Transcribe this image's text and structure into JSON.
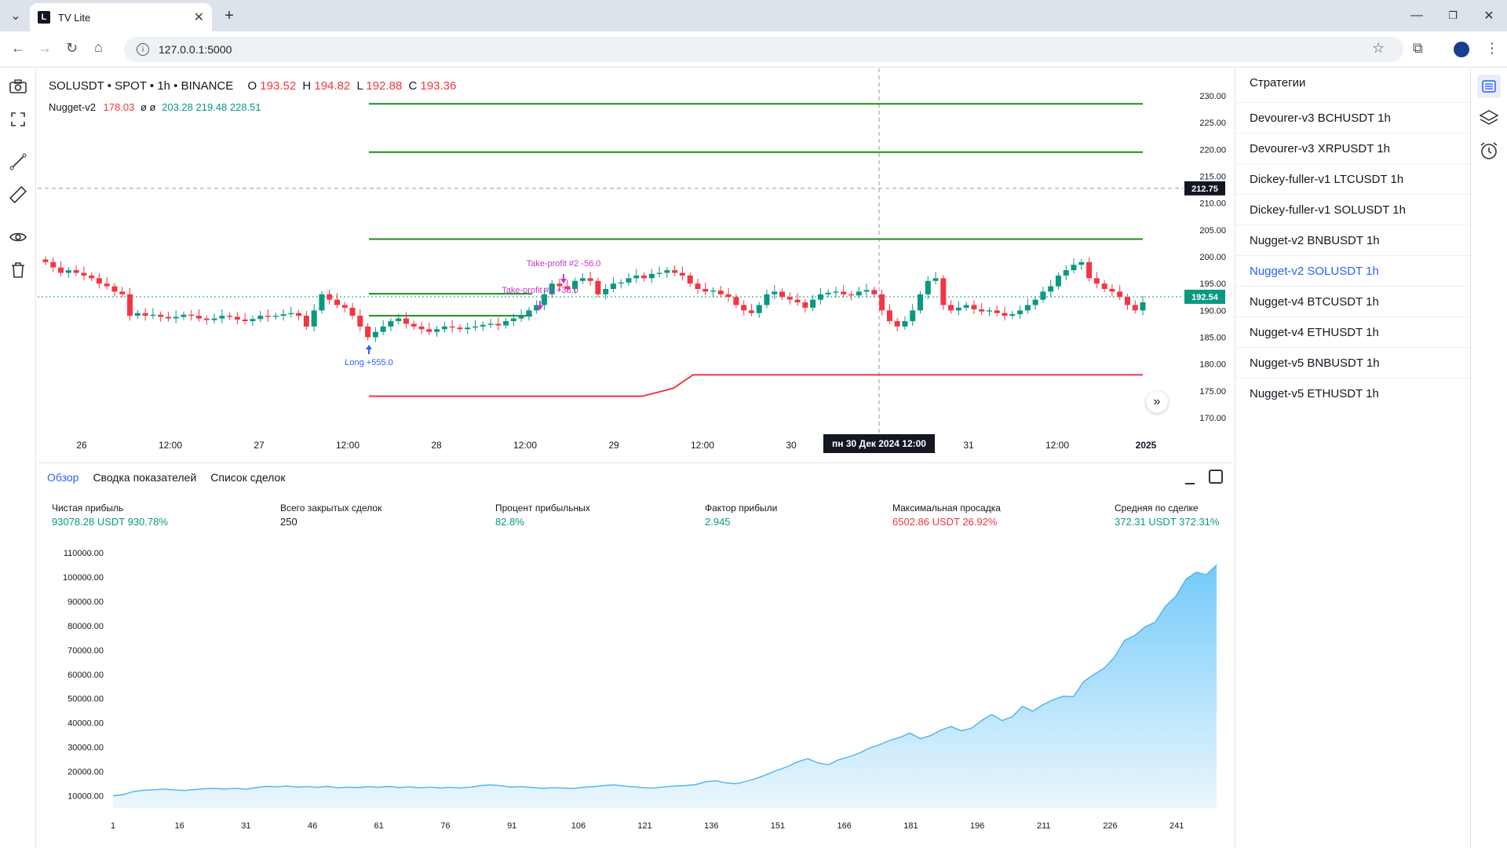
{
  "browser": {
    "tab_title": "TV Lite",
    "favicon_letter": "L",
    "url": "127.0.0.1:5000"
  },
  "legend": {
    "symbol": "SOLUSDT • SPOT • 1h • BINANCE",
    "o_label": "O",
    "o": "193.52",
    "h_label": "H",
    "h": "194.82",
    "l_label": "L",
    "l": "192.88",
    "c_label": "C",
    "c": "193.36",
    "indicator": "Nugget-v2",
    "ind_v1": "178.03",
    "ind_sym": "ø ø",
    "ind_v2": "203.28 219.48 228.51"
  },
  "chart_data": [
    {
      "type": "candlestick",
      "price_axis": [
        "230.00",
        "225.00",
        "220.00",
        "215.00",
        "210.00",
        "205.00",
        "200.00",
        "195.00",
        "190.00",
        "185.00",
        "180.00",
        "175.00",
        "170.00"
      ],
      "ylim": [
        170,
        230
      ],
      "time_axis": [
        "26",
        "12:00",
        "27",
        "12:00",
        "28",
        "12:00",
        "29",
        "12:00",
        "30",
        "12:00",
        "31",
        "12:00",
        "2025"
      ],
      "crosshair_time": "пн 30 Дек 2024   12:00",
      "crosshair_price": "212.75",
      "last_price": "192.54",
      "levels": [
        {
          "color": "#1e8c1e",
          "value": 228.5
        },
        {
          "color": "#1e8c1e",
          "value": 219.5
        },
        {
          "color": "#1e8c1e",
          "value": 203.3
        },
        {
          "color": "#1e8c1e",
          "value": 193.1
        },
        {
          "color": "#1e8c1e",
          "value": 189.0
        }
      ],
      "stop_line": [
        174,
        174,
        174,
        174,
        175.5,
        178,
        178,
        178
      ],
      "markers": [
        {
          "label": "Long +555.0",
          "color": "#2962ff",
          "price": 184
        },
        {
          "label": "Take-profit #1 +38.0",
          "color": "#cc33cc",
          "price": 191
        },
        {
          "label": "Take-profit #2 -56.0",
          "color": "#cc33cc",
          "price": 196
        }
      ],
      "closes": [
        199,
        198,
        197,
        197.5,
        197,
        196.5,
        196,
        195,
        194.5,
        193.5,
        193,
        189,
        189.5,
        189,
        189.2,
        188.8,
        188.5,
        188.8,
        189.2,
        189,
        188.5,
        188.2,
        188.5,
        189,
        188.8,
        188.3,
        188,
        188.4,
        189,
        188.8,
        189,
        189.3,
        189.5,
        189,
        187,
        190,
        193,
        192,
        191,
        190.5,
        189,
        187,
        185,
        186,
        187,
        188,
        188.5,
        187.5,
        187,
        186.5,
        186,
        186.5,
        187,
        186.8,
        186.5,
        186.8,
        187,
        187.3,
        187.5,
        187.2,
        188,
        188.5,
        189,
        190,
        191,
        193,
        195,
        194.5,
        194,
        195.5,
        196,
        195.5,
        193,
        194,
        195,
        195.2,
        196,
        196.5,
        196,
        196.8,
        197,
        197.5,
        197,
        196.5,
        195,
        194,
        193.5,
        193.7,
        193,
        192.5,
        191,
        190,
        189.5,
        191,
        193,
        193.5,
        192.5,
        192,
        191.5,
        190.5,
        192,
        193,
        193.3,
        193.5,
        193,
        192.8,
        193.5,
        193.8,
        193,
        190,
        188,
        187,
        188,
        190,
        193,
        195.5,
        196,
        191,
        190,
        190.5,
        191,
        190.2,
        189.8,
        190,
        189.5,
        189,
        189.3,
        190,
        191,
        192,
        193.5,
        194.5,
        196.5,
        197.5,
        198.5,
        199,
        196,
        195,
        194,
        193.5,
        192.5,
        191,
        190,
        191.5
      ]
    },
    {
      "type": "area",
      "y_axis": [
        "110000.00",
        "100000.00",
        "90000.00",
        "80000.00",
        "70000.00",
        "60000.00",
        "50000.00",
        "40000.00",
        "30000.00",
        "20000.00",
        "10000.00"
      ],
      "ylim": [
        5000,
        110000
      ],
      "x_ticks": [
        "1",
        "16",
        "31",
        "46",
        "61",
        "76",
        "91",
        "106",
        "121",
        "136",
        "151",
        "166",
        "181",
        "196",
        "211",
        "226",
        "241"
      ],
      "x_range": [
        1,
        250
      ],
      "equity": [
        10000,
        10500,
        11800,
        12300,
        12500,
        12800,
        12400,
        12200,
        12600,
        12900,
        13000,
        12800,
        13100,
        12700,
        13400,
        13900,
        13700,
        14000,
        13600,
        13800,
        13500,
        13900,
        13300,
        13600,
        13400,
        13800,
        13500,
        13900,
        13400,
        13700,
        13300,
        13600,
        13200,
        13500,
        13200,
        13600,
        14200,
        14500,
        14100,
        13600,
        13800,
        13400,
        13100,
        13300,
        13200,
        13000,
        13500,
        13800,
        14200,
        14500,
        14000,
        13700,
        13300,
        13200,
        13700,
        14000,
        14200,
        14600,
        15800,
        16200,
        15300,
        15000,
        16000,
        17200,
        18800,
        20500,
        22000,
        24000,
        25300,
        23500,
        22800,
        24800,
        26000,
        27500,
        29600,
        31000,
        32800,
        34000,
        35800,
        33500,
        34800,
        37000,
        38500,
        36800,
        37800,
        41000,
        43500,
        41000,
        42500,
        46800,
        44800,
        47500,
        49500,
        51000,
        50800,
        57000,
        60000,
        62500,
        67000,
        74000,
        76000,
        79500,
        81500,
        88000,
        92000,
        99000,
        102000,
        101000,
        105000
      ]
    }
  ],
  "panel": {
    "tabs": [
      "Обзор",
      "Сводка показателей",
      "Список сделок"
    ],
    "stats": [
      {
        "label": "Чистая прибыль",
        "value": "93078.28 USDT 930.78%",
        "tone": "pos"
      },
      {
        "label": "Всего закрытых сделок",
        "value": "250",
        "tone": "neu"
      },
      {
        "label": "Процент прибыльных",
        "value": "82.8%",
        "tone": "pos"
      },
      {
        "label": "Фактор прибыли",
        "value": "2.945",
        "tone": "pos"
      },
      {
        "label": "Максимальная просадка",
        "value": "6502.86 USDT 26.92%",
        "tone": "neg"
      },
      {
        "label": "Средняя по сделке",
        "value": "372.31 USDT 372.31%",
        "tone": "pos"
      }
    ]
  },
  "sidebar": {
    "title": "Стратегии",
    "items": [
      "Devourer-v3 BCHUSDT 1h",
      "Devourer-v3 XRPUSDT 1h",
      "Dickey-fuller-v1 LTCUSDT 1h",
      "Dickey-fuller-v1 SOLUSDT 1h",
      "Nugget-v2 BNBUSDT 1h",
      "Nugget-v2 SOLUSDT 1h",
      "Nugget-v4 BTCUSDT 1h",
      "Nugget-v4 ETHUSDT 1h",
      "Nugget-v5 BNBUSDT 1h",
      "Nugget-v5 ETHUSDT 1h"
    ],
    "selected_index": 5
  },
  "colors": {
    "accent": "#2962ff",
    "up": "#089981",
    "down": "#f23645",
    "area": "#5bc0f8"
  }
}
